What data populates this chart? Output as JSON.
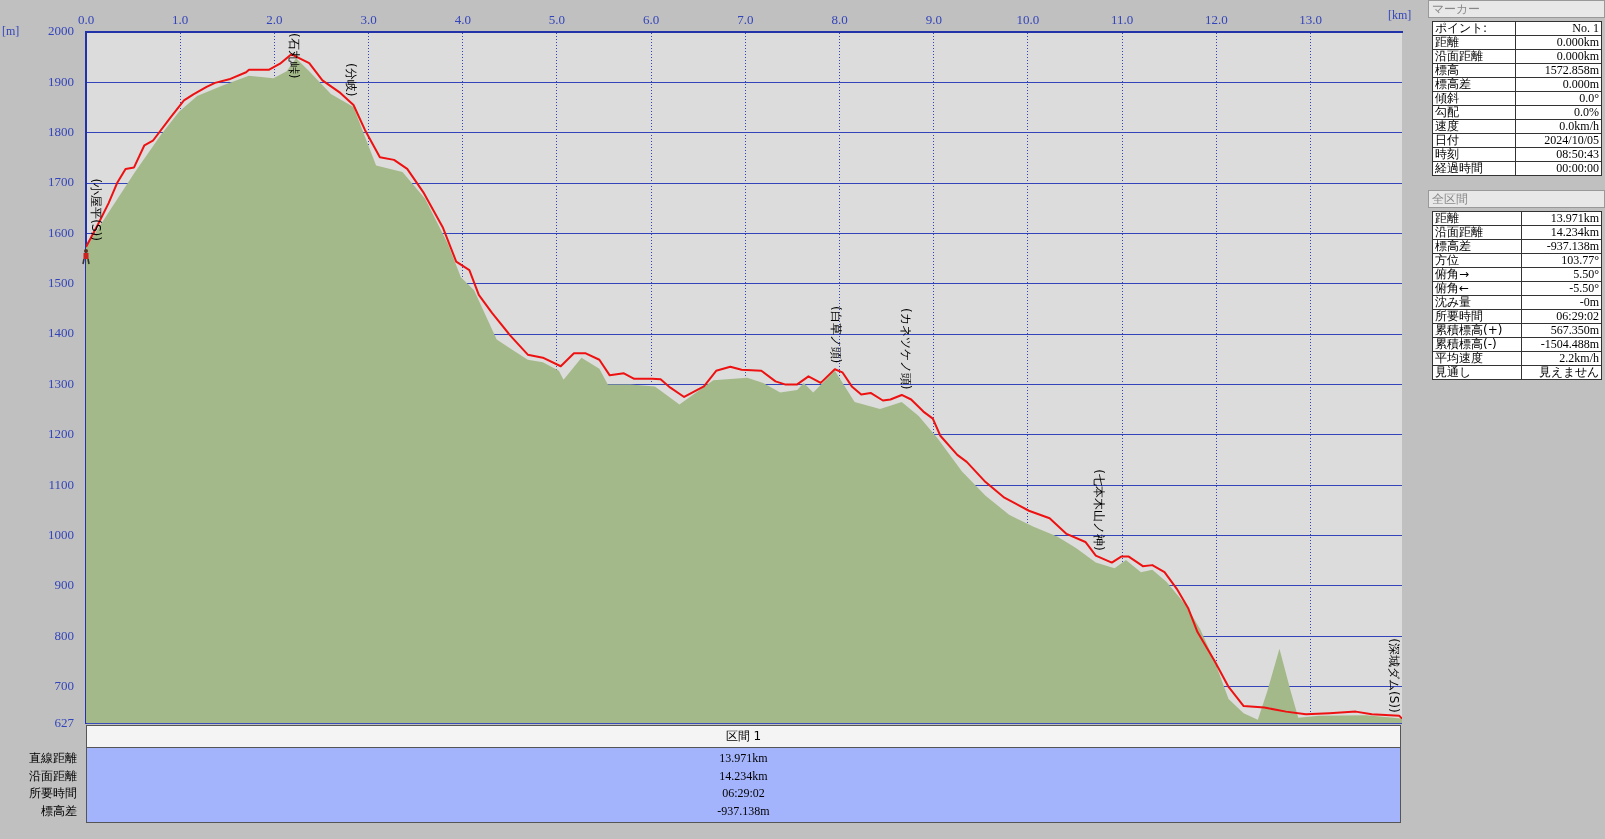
{
  "chart_data": [
    {
      "type": "line",
      "xlabel": "[km]",
      "ylabel": "[m]",
      "xlim": [
        0,
        13.971
      ],
      "ylim": [
        627,
        2000
      ],
      "xticks": [
        {
          "value": 0,
          "label": "0.0"
        },
        {
          "value": 1,
          "label": "1.0"
        },
        {
          "value": 2,
          "label": "2.0"
        },
        {
          "value": 3,
          "label": "3.0"
        },
        {
          "value": 4,
          "label": "4.0"
        },
        {
          "value": 5,
          "label": "5.0"
        },
        {
          "value": 6,
          "label": "6.0"
        },
        {
          "value": 7,
          "label": "7.0"
        },
        {
          "value": 8,
          "label": "8.0"
        },
        {
          "value": 9,
          "label": "9.0"
        },
        {
          "value": 10,
          "label": "10.0"
        },
        {
          "value": 11,
          "label": "11.0"
        },
        {
          "value": 12,
          "label": "12.0"
        },
        {
          "value": 13,
          "label": "13.0"
        }
      ],
      "yticks": [
        627,
        700,
        800,
        900,
        1000,
        1100,
        1200,
        1300,
        1400,
        1500,
        1600,
        1700,
        1800,
        1900,
        2000
      ],
      "grid": true,
      "marker": "none",
      "series": [
        {
          "type": "area",
          "color": "#a4b98a",
          "x": [
            0,
            0.52,
            0.8,
            0.99,
            1.18,
            1.47,
            1.73,
            1.99,
            2.13,
            2.23,
            2.37,
            2.6,
            2.84,
            3.08,
            3.36,
            3.6,
            3.84,
            3.98,
            4.12,
            4.36,
            4.69,
            4.85,
            5.02,
            5.07,
            5.26,
            5.45,
            5.54,
            5.78,
            6.04,
            6.3,
            6.66,
            7.02,
            7.19,
            7.37,
            7.55,
            7.62,
            7.72,
            7.95,
            8.16,
            8.43,
            8.66,
            8.84,
            9.04,
            9.3,
            9.55,
            9.8,
            10.06,
            10.31,
            10.51,
            10.72,
            10.92,
            11.04,
            11.2,
            11.32,
            11.47,
            11.68,
            11.83,
            11.98,
            12.13,
            12.29,
            12.44,
            12.54,
            12.67,
            12.79,
            12.87,
            13.09,
            13.59,
            13.94,
            13.971
          ],
          "values": [
            1573,
            1722,
            1797,
            1842,
            1873,
            1895,
            1913,
            1908,
            1922,
            1948,
            1922,
            1877,
            1851,
            1735,
            1722,
            1669,
            1580,
            1513,
            1487,
            1389,
            1349,
            1344,
            1327,
            1309,
            1353,
            1331,
            1300,
            1300,
            1296,
            1260,
            1308,
            1313,
            1303,
            1284,
            1289,
            1303,
            1284,
            1327,
            1265,
            1251,
            1265,
            1237,
            1193,
            1127,
            1079,
            1041,
            1017,
            998,
            975,
            946,
            935,
            951,
            927,
            932,
            908,
            861,
            813,
            751,
            675,
            647,
            634,
            690,
            775,
            690,
            638,
            642,
            643,
            637,
            636
          ]
        },
        {
          "type": "line",
          "color": "#ee1111",
          "x": [
            0,
            0.12,
            0.24,
            0.33,
            0.42,
            0.51,
            0.62,
            0.71,
            0.9,
            1.04,
            1.14,
            1.28,
            1.37,
            1.52,
            1.7,
            1.73,
            1.94,
            2.06,
            2.18,
            2.23,
            2.37,
            2.51,
            2.7,
            2.84,
            2.96,
            3.12,
            3.27,
            3.41,
            3.58,
            3.79,
            3.93,
            4.07,
            4.17,
            4.31,
            4.5,
            4.69,
            4.85,
            5.04,
            5.18,
            5.3,
            5.45,
            5.56,
            5.71,
            5.82,
            6.01,
            6.1,
            6.2,
            6.35,
            6.56,
            6.69,
            6.84,
            6.96,
            7.17,
            7.32,
            7.42,
            7.55,
            7.67,
            7.8,
            7.95,
            8.03,
            8.13,
            8.23,
            8.33,
            8.46,
            8.54,
            8.66,
            8.76,
            8.89,
            8.99,
            9.07,
            9.25,
            9.35,
            9.55,
            9.75,
            10.01,
            10.23,
            10.41,
            10.61,
            10.72,
            10.89,
            10.99,
            11.07,
            11.22,
            11.32,
            11.45,
            11.58,
            11.7,
            11.8,
            11.98,
            12.13,
            12.29,
            12.51,
            12.74,
            12.95,
            13.2,
            13.48,
            13.65,
            13.94,
            13.971
          ],
          "values": [
            1573,
            1615,
            1660,
            1700,
            1728,
            1731,
            1775,
            1784,
            1831,
            1864,
            1876,
            1891,
            1899,
            1906,
            1920,
            1925,
            1925,
            1937,
            1956,
            1951,
            1938,
            1904,
            1879,
            1855,
            1806,
            1751,
            1746,
            1728,
            1682,
            1611,
            1544,
            1527,
            1478,
            1442,
            1398,
            1359,
            1353,
            1336,
            1362,
            1362,
            1349,
            1318,
            1322,
            1311,
            1311,
            1310,
            1294,
            1275,
            1296,
            1327,
            1335,
            1329,
            1327,
            1306,
            1300,
            1300,
            1316,
            1303,
            1330,
            1324,
            1296,
            1280,
            1283,
            1268,
            1270,
            1279,
            1270,
            1246,
            1232,
            1198,
            1160,
            1146,
            1106,
            1075,
            1049,
            1034,
            1003,
            987,
            960,
            946,
            958,
            958,
            939,
            941,
            927,
            894,
            856,
            808,
            751,
            699,
            661,
            658,
            650,
            645,
            647,
            650,
            645,
            642,
            636
          ]
        }
      ],
      "annotations": [
        {
          "text": "(小屋平(S))",
          "x": 0,
          "y": 1573
        },
        {
          "text": "(石丸峠)",
          "x": 2.2,
          "y": 1955
        },
        {
          "text": "(分岐)",
          "x": 2.8,
          "y": 1860
        },
        {
          "text": "(白草ノ頭)",
          "x": 7.95,
          "y": 1330
        },
        {
          "text": "(カネツケノ頭)",
          "x": 8.7,
          "y": 1278
        },
        {
          "text": "(七本木山ノ神)",
          "x": 10.75,
          "y": 958
        },
        {
          "text": "(深城ダム(S))",
          "x": 13.971,
          "y": 636
        }
      ]
    },
    {
      "type": "other",
      "title": "マーカー",
      "annotations": [
        "ポイント:",
        "No. 1",
        "距離",
        "0.000km",
        "沿面距離",
        "0.000km",
        "標高",
        "1572.858m",
        "標高差",
        "0.000m",
        "傾斜",
        "0.0°",
        "勾配",
        "0.0%",
        "速度",
        "0.0km/h",
        "日付",
        "2024/10/05",
        "時刻",
        "08:50:43",
        "経過時間",
        "00:00:00"
      ]
    },
    {
      "type": "other",
      "title": "全区間",
      "annotations": [
        "距離",
        "13.971km",
        "沿面距離",
        "14.234km",
        "標高差",
        "-937.138m",
        "方位",
        "103.77°",
        "俯角→",
        "5.50°",
        "俯角←",
        "-5.50°",
        "沈み量",
        "-0m",
        "所要時間",
        "06:29:02",
        "累積標高(+)",
        "567.350m",
        "累積標高(-)",
        "-1504.488m",
        "平均速度",
        "2.2km/h",
        "見通し",
        "見えません"
      ]
    },
    {
      "type": "other",
      "title": "区間 1",
      "annotations": [
        "直線距離",
        "13.971km",
        "沿面距離",
        "14.234km",
        "所要時間",
        "06:29:02",
        "標高差",
        "-937.138m"
      ]
    }
  ]
}
